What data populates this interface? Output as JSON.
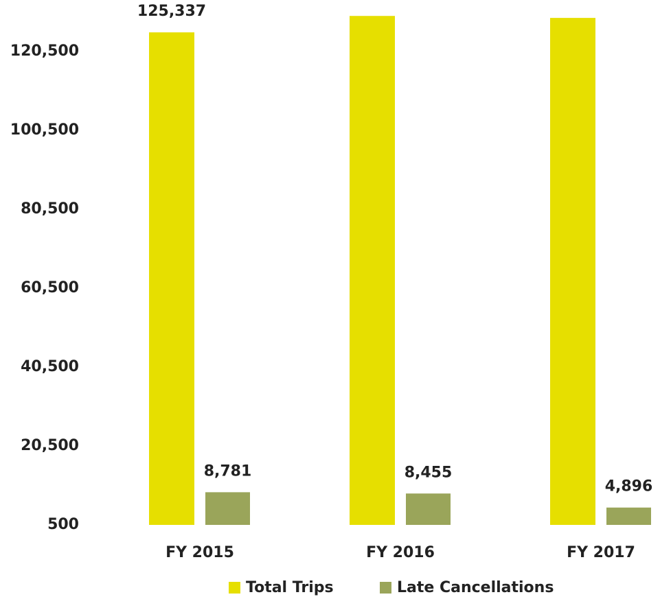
{
  "chart_data": {
    "type": "bar",
    "categories": [
      "FY 2015",
      "FY 2016",
      "FY 2017"
    ],
    "series": [
      {
        "name": "Total Trips",
        "color": "#e6df00",
        "values": [
          125337,
          129500,
          129000
        ],
        "value_labels": [
          "125,337",
          null,
          null
        ]
      },
      {
        "name": "Late Cancellations",
        "color": "#9aa55a",
        "values": [
          8781,
          8455,
          4896
        ],
        "value_labels": [
          "8,781",
          "8,455",
          "4,896"
        ]
      }
    ],
    "ylim": [
      500,
      131000
    ],
    "yticks": [
      {
        "value": 500,
        "label": "500"
      },
      {
        "value": 20500,
        "label": "20,500"
      },
      {
        "value": 40500,
        "label": "40,500"
      },
      {
        "value": 60500,
        "label": "60,500"
      },
      {
        "value": 80500,
        "label": "80,500"
      },
      {
        "value": 100500,
        "label": "100,500"
      },
      {
        "value": 120500,
        "label": "120,500"
      }
    ],
    "grid": false,
    "legend": "bottom"
  }
}
